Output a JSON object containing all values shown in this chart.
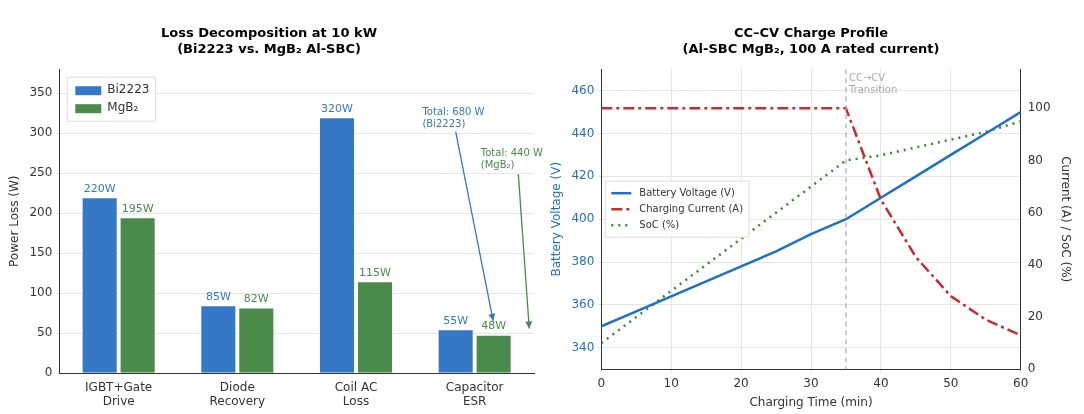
{
  "chart_data": [
    {
      "type": "bar",
      "title": "Loss Decomposition at 10 kW\n(Bi2223 vs. MgB₂ Al-SBC)",
      "categories": [
        "IGBT+Gate\nDrive",
        "Diode\nRecovery",
        "Coil AC\nLoss",
        "Capacitor\nESR"
      ],
      "ylabel": "Power Loss (W)",
      "ylim": [
        0,
        380
      ],
      "yticks": [
        0,
        50,
        100,
        150,
        200,
        250,
        300,
        350
      ],
      "grid": "y",
      "legend": "top left",
      "series": [
        {
          "name": "Bi2223",
          "color": "#3478c6",
          "values": [
            220,
            85,
            320,
            55
          ],
          "value_labels": [
            "220W",
            "85W",
            "320W",
            "55W"
          ]
        },
        {
          "name": "MgB₂",
          "color": "#4a8a4a",
          "values": [
            195,
            82,
            115,
            48
          ],
          "value_labels": [
            "195W",
            "82W",
            "115W",
            "48W"
          ]
        }
      ],
      "annotations": [
        "Total: 680 W\n(Bi2223)",
        "Total: 440 W\n(MgB₂)"
      ]
    },
    {
      "type": "line",
      "title": "CC–CV Charge Profile\n(Al-SBC MgB₂, 100 A rated current)",
      "xlabel": "Charging Time (min)",
      "ylabel": "Battery Voltage (V)",
      "y2label": "Current (A) / SoC (%)",
      "xlim": [
        0,
        60
      ],
      "xticks": [
        0,
        10,
        20,
        30,
        40,
        50,
        60
      ],
      "ylim": [
        330,
        470
      ],
      "yticks": [
        340,
        360,
        380,
        400,
        420,
        440,
        460
      ],
      "y2lim": [
        0,
        115
      ],
      "y2ticks": [
        0,
        20,
        40,
        60,
        80,
        100
      ],
      "grid": true,
      "legend": "left",
      "marker": "none",
      "x": [
        0,
        5,
        10,
        15,
        20,
        25,
        30,
        35,
        40,
        45,
        50,
        55,
        60
      ],
      "series": [
        {
          "name": "Battery Voltage (V)",
          "color": "#1f6fcc",
          "line_style": "solid",
          "values": [
            350,
            357,
            364,
            371,
            378,
            385,
            393,
            400,
            410,
            420,
            430,
            440,
            450
          ]
        },
        {
          "name": "Charging Current (A)",
          "color": "#cc2a2a",
          "line_style": "dashed",
          "axis": "y2",
          "values": [
            100,
            100,
            100,
            100,
            100,
            100,
            100,
            100,
            65,
            43,
            28,
            19,
            13
          ]
        },
        {
          "name": "SoC (%)",
          "color": "#2e8b2e",
          "line_style": "dotted",
          "axis": "y2",
          "values": [
            10,
            20,
            30,
            40,
            50,
            60,
            70,
            80,
            82,
            85,
            88,
            91,
            95
          ]
        }
      ],
      "ref_lines": [
        {
          "axis": "x",
          "value": 35,
          "label": "CC→CV\nTransition",
          "color": "#aaaaaa",
          "line_style": "dashed"
        }
      ]
    }
  ]
}
